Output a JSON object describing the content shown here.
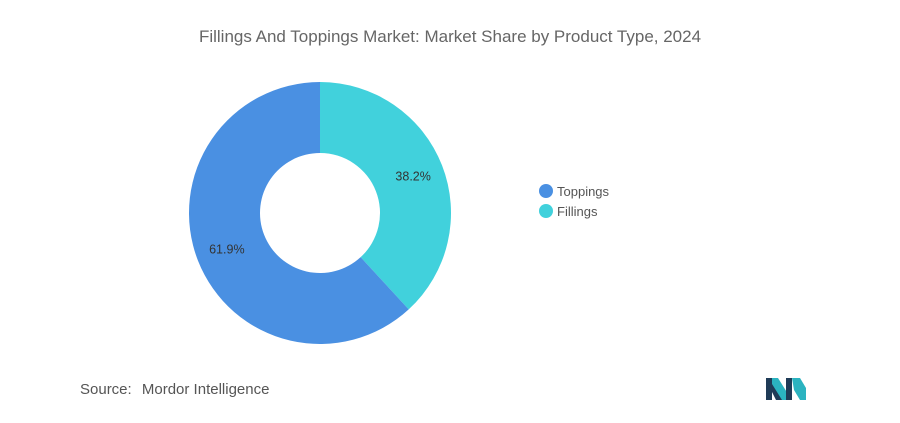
{
  "chart_data": {
    "type": "pie",
    "title": "Fillings And Toppings Market: Market Share by Product Type, 2024",
    "slices": [
      {
        "name": "Fillings",
        "value": 38.2,
        "label": "38.2%",
        "color": "#41d1dc"
      },
      {
        "name": "Toppings",
        "value": 61.9,
        "label": "61.9%",
        "color": "#4a90e2"
      }
    ],
    "legend": [
      {
        "name": "Toppings",
        "color": "#4a90e2"
      },
      {
        "name": "Fillings",
        "color": "#41d1dc"
      }
    ],
    "donut": true,
    "legend_placement": "right"
  },
  "source": {
    "label": "Source:",
    "text": "Mordor Intelligence"
  },
  "logo": {
    "icon": "mordor-intelligence-logo-icon",
    "colors": [
      "#1f3b57",
      "#2bb3c0"
    ]
  }
}
